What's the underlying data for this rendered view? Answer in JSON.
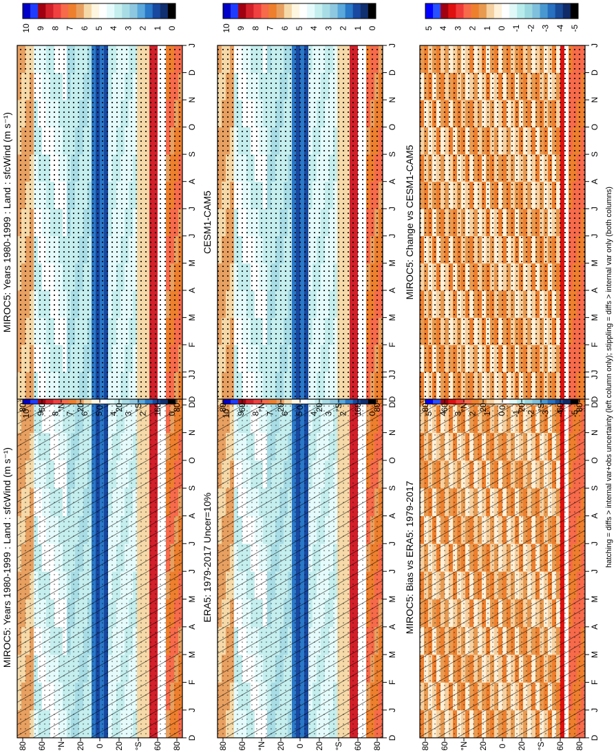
{
  "chart_data": [
    {
      "type": "heatmap",
      "id": "p1",
      "title": "MIROC5: Years 1980-1999 : Land : sfcWind (m s⁻¹)",
      "scale": "abs",
      "hatch": true,
      "stipple": true
    },
    {
      "type": "heatmap",
      "id": "p2",
      "title": "MIROC5: Years 1980-1999 : Land : sfcWind (m s⁻¹)",
      "scale": "abs",
      "hatch": false,
      "stipple": true
    },
    {
      "type": "heatmap",
      "id": "p3",
      "title": "ERA5: 1979-2017 Uncer=10%",
      "scale": "abs",
      "hatch": true,
      "stipple": true
    },
    {
      "type": "heatmap",
      "id": "p4",
      "title": "CESM1-CAM5",
      "scale": "abs",
      "hatch": false,
      "stipple": true
    },
    {
      "type": "heatmap",
      "id": "p5",
      "title": "MIROC5: Bias vs ERA5: 1979-2017",
      "scale": "diff",
      "hatch": true,
      "stipple": true
    },
    {
      "type": "heatmap",
      "id": "p6",
      "title": "MIROC5: Change vs CESM1-CAM5",
      "scale": "diff",
      "hatch": false,
      "stipple": true
    }
  ],
  "months": [
    "D",
    "J",
    "F",
    "M",
    "A",
    "M",
    "J",
    "J",
    "A",
    "S",
    "O",
    "N",
    "D",
    "J"
  ],
  "lat_labels": [
    "80",
    "60",
    "°N",
    "20",
    "0",
    "20",
    "°S",
    "60",
    "80"
  ],
  "abs_labels": [
    "10",
    "9",
    "8",
    "7",
    "6",
    "5",
    "4",
    "3",
    "2",
    "1",
    "0"
  ],
  "diff_labels": [
    "5",
    "4",
    "3",
    "2",
    "1",
    "0",
    "-1",
    "-2",
    "-3",
    "-4",
    "-5"
  ],
  "abs_colors": [
    "#0000c8",
    "#1e3cff",
    "#a00010",
    "#d2202a",
    "#f04040",
    "#f76a4a",
    "#ee7f2d",
    "#e8a060",
    "#f5d9a8",
    "#fff6e0",
    "#ffffff",
    "#e5fbfb",
    "#c5eeee",
    "#a8dde6",
    "#8ec8e0",
    "#5aa8dc",
    "#2a78c8",
    "#1848a0",
    "#102f70",
    "#000000"
  ],
  "diff_colors": [
    "#0000ff",
    "#2850ff",
    "#a00010",
    "#e01010",
    "#f03a3a",
    "#f76a4a",
    "#ee7f2d",
    "#e89a50",
    "#f5d0a0",
    "#fff0d8",
    "#ffffff",
    "#e0f8f8",
    "#b8ecec",
    "#9cd8e0",
    "#80c0dc",
    "#4a98d0",
    "#2870c0",
    "#184a98",
    "#102a68",
    "#000000"
  ],
  "footnote": "hatching = diffs > internal var+obs uncertainty (left column only); stippling = diffs > internal var only (both columns)"
}
